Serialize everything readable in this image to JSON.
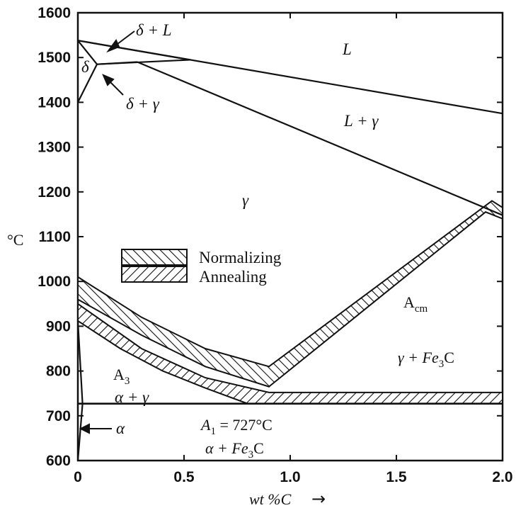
{
  "chart_data": {
    "type": "line",
    "title": "",
    "xlabel": "wt %C",
    "xlabel_arrow": "→",
    "ylabel": "°C",
    "xlim": [
      0,
      2.0
    ],
    "ylim": [
      600,
      1600
    ],
    "x_ticks": [
      "0",
      "0.5",
      "1.0",
      "1.5",
      "2.0"
    ],
    "y_ticks": [
      "1600",
      "1500",
      "1400",
      "1300",
      "1200",
      "1100",
      "1000",
      "900",
      "800",
      "700",
      "600"
    ],
    "legend": {
      "placement": "center-left",
      "entries": [
        "Normalizing",
        "Annealing"
      ]
    },
    "series": [],
    "curves": {
      "liquidus": [
        [
          0,
          1538
        ],
        [
          2.0,
          1375
        ]
      ],
      "delta_liquid_lower": [
        [
          0,
          1538
        ],
        [
          0.53,
          1495
        ]
      ],
      "peritectic_line": [
        [
          0.09,
          1485
        ],
        [
          0.53,
          1495
        ]
      ],
      "austenite_solidus": [
        [
          0.28,
          1490
        ],
        [
          2.0,
          1148
        ]
      ],
      "delta_gamma_upper": [
        [
          0,
          1538
        ],
        [
          0.09,
          1485
        ]
      ],
      "delta_gamma_lower": [
        [
          0,
          1400
        ],
        [
          0.09,
          1485
        ]
      ],
      "gamma_delta_boundary": [
        [
          0.09,
          1485
        ],
        [
          0.28,
          1490
        ]
      ],
      "A3": [
        [
          0,
          912
        ],
        [
          0.2,
          850
        ],
        [
          0.4,
          800
        ],
        [
          0.6,
          762
        ],
        [
          0.77,
          727
        ]
      ],
      "A1": [
        [
          0,
          727
        ],
        [
          2.0,
          727
        ]
      ],
      "alpha_solvus": [
        [
          0,
          600
        ],
        [
          0.022,
          727
        ],
        [
          0,
          912
        ]
      ],
      "normalizing_band_upper": [
        [
          0,
          1010
        ],
        [
          0.3,
          920
        ],
        [
          0.6,
          850
        ],
        [
          0.9,
          810
        ],
        [
          1.95,
          1180
        ],
        [
          2.0,
          1165
        ]
      ],
      "annealing_band_range": [
        [
          0,
          950
        ],
        [
          0.9,
          752
        ],
        [
          2.0,
          752
        ]
      ]
    },
    "annotations": {
      "L": "L",
      "L_gamma": "L + γ",
      "delta": "δ",
      "delta_L": "δ + L",
      "delta_gamma": "δ + γ",
      "gamma": "γ",
      "Acm": "A",
      "Acm_sub": "cm",
      "gamma_Fe3C": "γ + Fe",
      "gamma_Fe3C_sub": "3",
      "gamma_Fe3C_tail": "C",
      "A3": "A",
      "A3_sub": "3",
      "alpha_gamma": "α + γ",
      "A1": "A",
      "A1_sub": "1",
      "A1_value": " = 727°C",
      "alpha": "α",
      "alpha_Fe3C": "α + Fe",
      "alpha_Fe3C_sub": "3",
      "alpha_Fe3C_tail": "C"
    }
  }
}
